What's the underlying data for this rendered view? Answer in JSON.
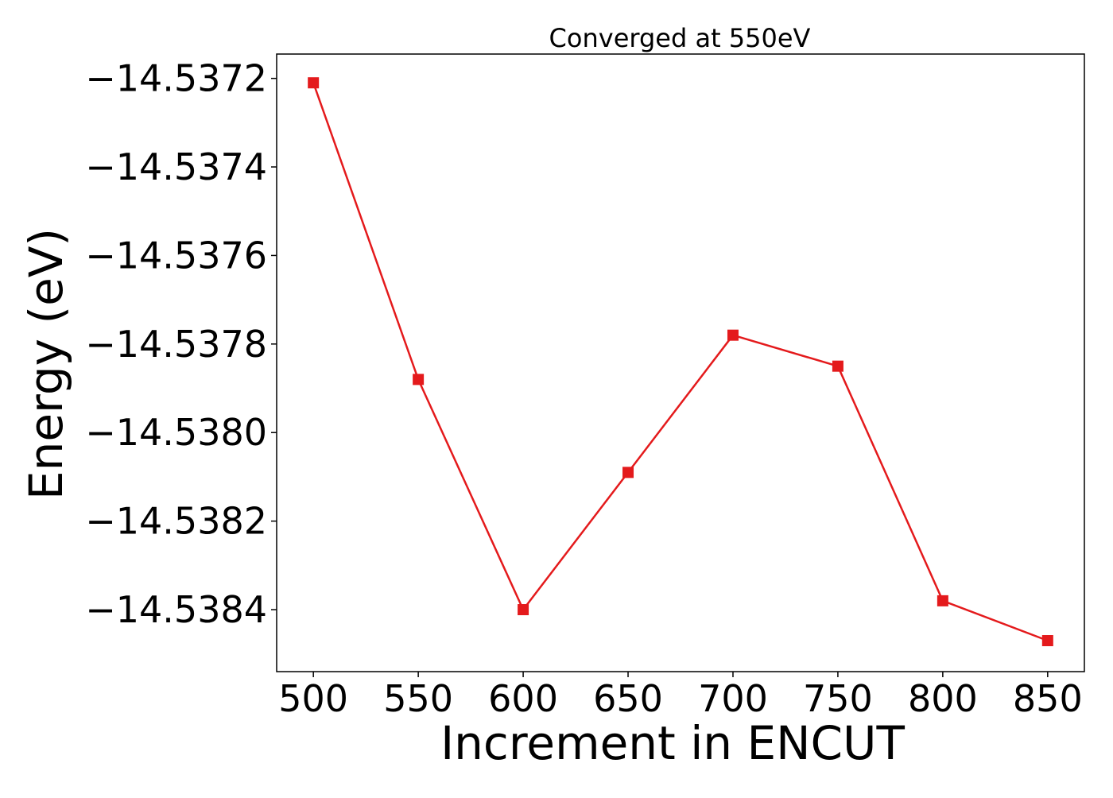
{
  "chart_data": {
    "type": "line",
    "title": "Converged at 550eV",
    "xlabel": "Increment in ENCUT",
    "ylabel": "Energy (eV)",
    "x": [
      500,
      550,
      600,
      650,
      700,
      750,
      800,
      850
    ],
    "series": [
      {
        "values": [
          -14.53721,
          -14.53788,
          -14.5384,
          -14.53809,
          -14.53778,
          -14.53785,
          -14.53838,
          -14.53847
        ],
        "color": "#e41a1c",
        "marker": "square"
      }
    ],
    "xticks": [
      500,
      550,
      600,
      650,
      700,
      750,
      800,
      850
    ],
    "xtick_labels": [
      "500",
      "550",
      "600",
      "650",
      "700",
      "750",
      "800",
      "850"
    ],
    "yticks": [
      -14.5372,
      -14.5374,
      -14.5376,
      -14.5378,
      -14.538,
      -14.5382,
      -14.5384
    ],
    "ytick_labels": [
      "−14.5372",
      "−14.5374",
      "−14.5376",
      "−14.5378",
      "−14.5380",
      "−14.5382",
      "−14.5384"
    ],
    "xlim": [
      482.5,
      867.5
    ],
    "ylim": [
      -14.53854,
      -14.537145
    ],
    "grid": false,
    "legend": false
  }
}
